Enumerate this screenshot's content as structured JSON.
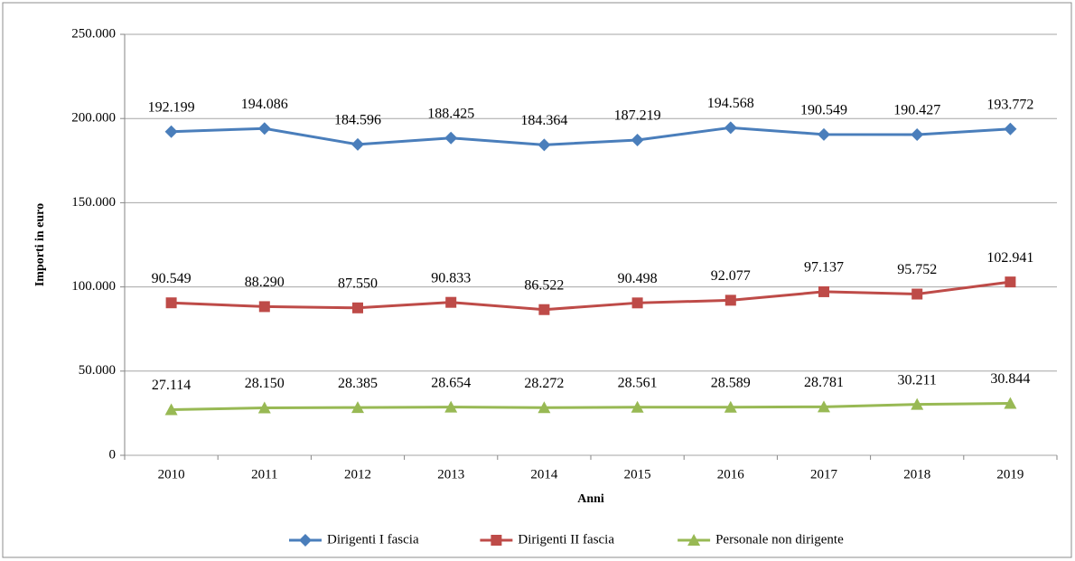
{
  "chart_data": {
    "type": "line",
    "y_label": "Importi in euro",
    "x_label": "Anni",
    "categories": [
      "2010",
      "2011",
      "2012",
      "2013",
      "2014",
      "2015",
      "2016",
      "2017",
      "2018",
      "2019"
    ],
    "series": [
      {
        "name": "Dirigenti I fascia",
        "color": "#4a7ebb",
        "marker": "diamond",
        "values": [
          192199,
          194086,
          184596,
          188425,
          184364,
          187219,
          194568,
          190549,
          190427,
          193772
        ],
        "value_labels": [
          "192.199",
          "194.086",
          "184.596",
          "188.425",
          "184.364",
          "187.219",
          "194.568",
          "190.549",
          "190.427",
          "193.772"
        ]
      },
      {
        "name": "Dirigenti II fascia",
        "color": "#be4b48",
        "marker": "square",
        "values": [
          90549,
          88290,
          87550,
          90833,
          86522,
          90498,
          92077,
          97137,
          95752,
          102941
        ],
        "value_labels": [
          "90.549",
          "88.290",
          "87.550",
          "90.833",
          "86.522",
          "90.498",
          "92.077",
          "97.137",
          "95.752",
          "102.941"
        ]
      },
      {
        "name": "Personale non dirigente",
        "color": "#98b954",
        "marker": "triangle",
        "values": [
          27114,
          28150,
          28385,
          28654,
          28272,
          28561,
          28589,
          28781,
          30211,
          30844
        ],
        "value_labels": [
          "27.114",
          "28.150",
          "28.385",
          "28.654",
          "28.272",
          "28.561",
          "28.589",
          "28.781",
          "30.211",
          "30.844"
        ]
      }
    ],
    "ylim": [
      0,
      250000
    ],
    "yticks": [
      0,
      {
        "value": 50000,
        "label": "50.000"
      },
      {
        "value": 100000,
        "label": "100.000"
      },
      {
        "value": 150000,
        "label": "150.000"
      },
      {
        "value": 200000,
        "label": "200.000"
      },
      {
        "value": 250000,
        "label": "250.000"
      }
    ],
    "grid": true,
    "legend": "bottom"
  }
}
